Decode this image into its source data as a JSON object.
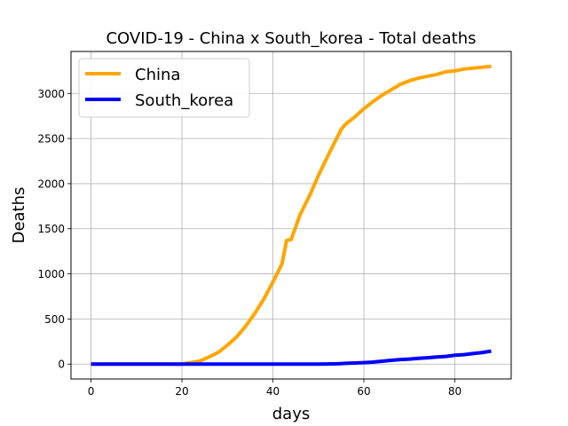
{
  "chart_data": {
    "type": "line",
    "title": "COVID-19 - China x South_korea - Total deaths",
    "xlabel": "days",
    "ylabel": "Deaths",
    "xlim": [
      -4.4,
      92.4
    ],
    "ylim": [
      -165,
      3465
    ],
    "xticks": [
      0,
      20,
      40,
      60,
      80
    ],
    "yticks": [
      0,
      500,
      1000,
      1500,
      2000,
      2500,
      3000
    ],
    "grid": true,
    "legend_position": "top-left",
    "series": [
      {
        "name": "China",
        "color": "#ffa500",
        "x": [
          0,
          2,
          4,
          6,
          8,
          10,
          12,
          14,
          16,
          18,
          20,
          22,
          24,
          26,
          28,
          30,
          32,
          34,
          36,
          38,
          40,
          42,
          43,
          44,
          45,
          46,
          48,
          50,
          52,
          54,
          55,
          56,
          58,
          60,
          62,
          64,
          66,
          68,
          70,
          72,
          74,
          76,
          78,
          80,
          82,
          84,
          86,
          88
        ],
        "y": [
          0,
          0,
          0,
          0,
          0,
          0,
          0,
          0,
          0,
          0,
          0,
          17,
          35,
          80,
          130,
          210,
          300,
          420,
          560,
          720,
          910,
          1110,
          1370,
          1380,
          1520,
          1660,
          1860,
          2090,
          2300,
          2500,
          2600,
          2660,
          2740,
          2830,
          2910,
          2980,
          3040,
          3100,
          3140,
          3170,
          3190,
          3210,
          3240,
          3250,
          3270,
          3280,
          3290,
          3300
        ]
      },
      {
        "name": "South_korea",
        "color": "#0000ff",
        "x": [
          0,
          10,
          20,
          30,
          40,
          50,
          52,
          54,
          56,
          58,
          60,
          62,
          64,
          66,
          68,
          70,
          72,
          74,
          76,
          78,
          80,
          82,
          84,
          86,
          88
        ],
        "y": [
          0,
          0,
          0,
          0,
          0,
          0,
          1,
          3,
          8,
          12,
          16,
          22,
          32,
          42,
          50,
          55,
          64,
          70,
          78,
          85,
          98,
          104,
          117,
          128,
          144
        ]
      }
    ]
  }
}
